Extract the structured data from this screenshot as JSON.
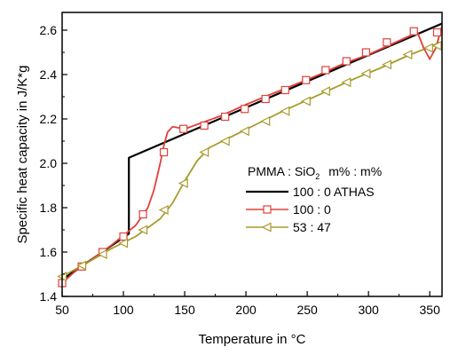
{
  "chart_data": {
    "type": "line",
    "xlabel": "Temperature in °C",
    "ylabel": "Specific heat capacity in J/K*g",
    "xlim": [
      50,
      360
    ],
    "ylim": [
      1.4,
      2.68
    ],
    "xticks": [
      50,
      100,
      150,
      200,
      250,
      300,
      350
    ],
    "yticks": [
      1.4,
      1.6,
      1.8,
      2.0,
      2.2,
      2.4,
      2.6
    ],
    "xtick_labels": [
      "50",
      "100",
      "150",
      "200",
      "250",
      "300",
      "350"
    ],
    "ytick_labels": [
      "1.4",
      "1.6",
      "1.8",
      "2.0",
      "2.2",
      "2.4",
      "2.6"
    ],
    "grid": false,
    "legend": {
      "header_text": "PMMA : SiO",
      "header_sub": "2",
      "header_units": "m% : m%",
      "placement": "center-right"
    },
    "series": [
      {
        "name": "100 :  0  ATHAS",
        "color": "#000000",
        "marker": "none",
        "x": [
          50,
          104.5,
          104.5,
          360
        ],
        "y": [
          1.475,
          1.683,
          2.025,
          2.63
        ]
      },
      {
        "name": "100 :  0",
        "color": "#e0413a",
        "marker": "square",
        "x": [
          50,
          60,
          70,
          80,
          90,
          100,
          110,
          120,
          125,
          130,
          133,
          136,
          140,
          145,
          150,
          160,
          170,
          180,
          200,
          220,
          240,
          260,
          280,
          300,
          320,
          340,
          345,
          350,
          355,
          360
        ],
        "y": [
          1.46,
          1.51,
          1.55,
          1.59,
          1.63,
          1.675,
          1.72,
          1.8,
          1.88,
          2.0,
          2.08,
          2.14,
          2.165,
          2.16,
          2.155,
          2.175,
          2.195,
          2.215,
          2.265,
          2.31,
          2.355,
          2.4,
          2.45,
          2.49,
          2.54,
          2.59,
          2.52,
          2.47,
          2.52,
          2.62
        ],
        "marker_x": [
          50,
          66,
          83,
          100,
          116,
          133,
          149,
          166,
          183,
          199,
          216,
          232,
          249,
          265,
          282,
          298,
          315,
          337,
          356
        ],
        "marker_y": [
          1.46,
          1.535,
          1.6,
          1.67,
          1.77,
          2.05,
          2.155,
          2.17,
          2.21,
          2.245,
          2.29,
          2.33,
          2.375,
          2.42,
          2.46,
          2.5,
          2.545,
          2.595,
          2.59
        ]
      },
      {
        "name": "53 : 47",
        "color": "#a89a2a",
        "marker": "triangle-left",
        "x": [
          50,
          70,
          90,
          110,
          130,
          140,
          150,
          160,
          170,
          190,
          210,
          230,
          250,
          270,
          290,
          310,
          330,
          350,
          358
        ],
        "y": [
          1.49,
          1.55,
          1.615,
          1.67,
          1.75,
          1.82,
          1.92,
          2.01,
          2.07,
          2.125,
          2.18,
          2.235,
          2.285,
          2.335,
          2.385,
          2.43,
          2.48,
          2.525,
          2.545
        ],
        "marker_x": [
          50,
          66,
          83,
          100,
          116,
          133,
          149,
          166,
          183,
          199,
          216,
          232,
          249,
          265,
          282,
          298,
          315,
          332,
          349,
          356
        ],
        "marker_y": [
          1.49,
          1.54,
          1.59,
          1.64,
          1.7,
          1.79,
          1.91,
          2.05,
          2.1,
          2.145,
          2.19,
          2.235,
          2.28,
          2.325,
          2.365,
          2.405,
          2.445,
          2.49,
          2.52,
          2.53
        ]
      }
    ]
  }
}
